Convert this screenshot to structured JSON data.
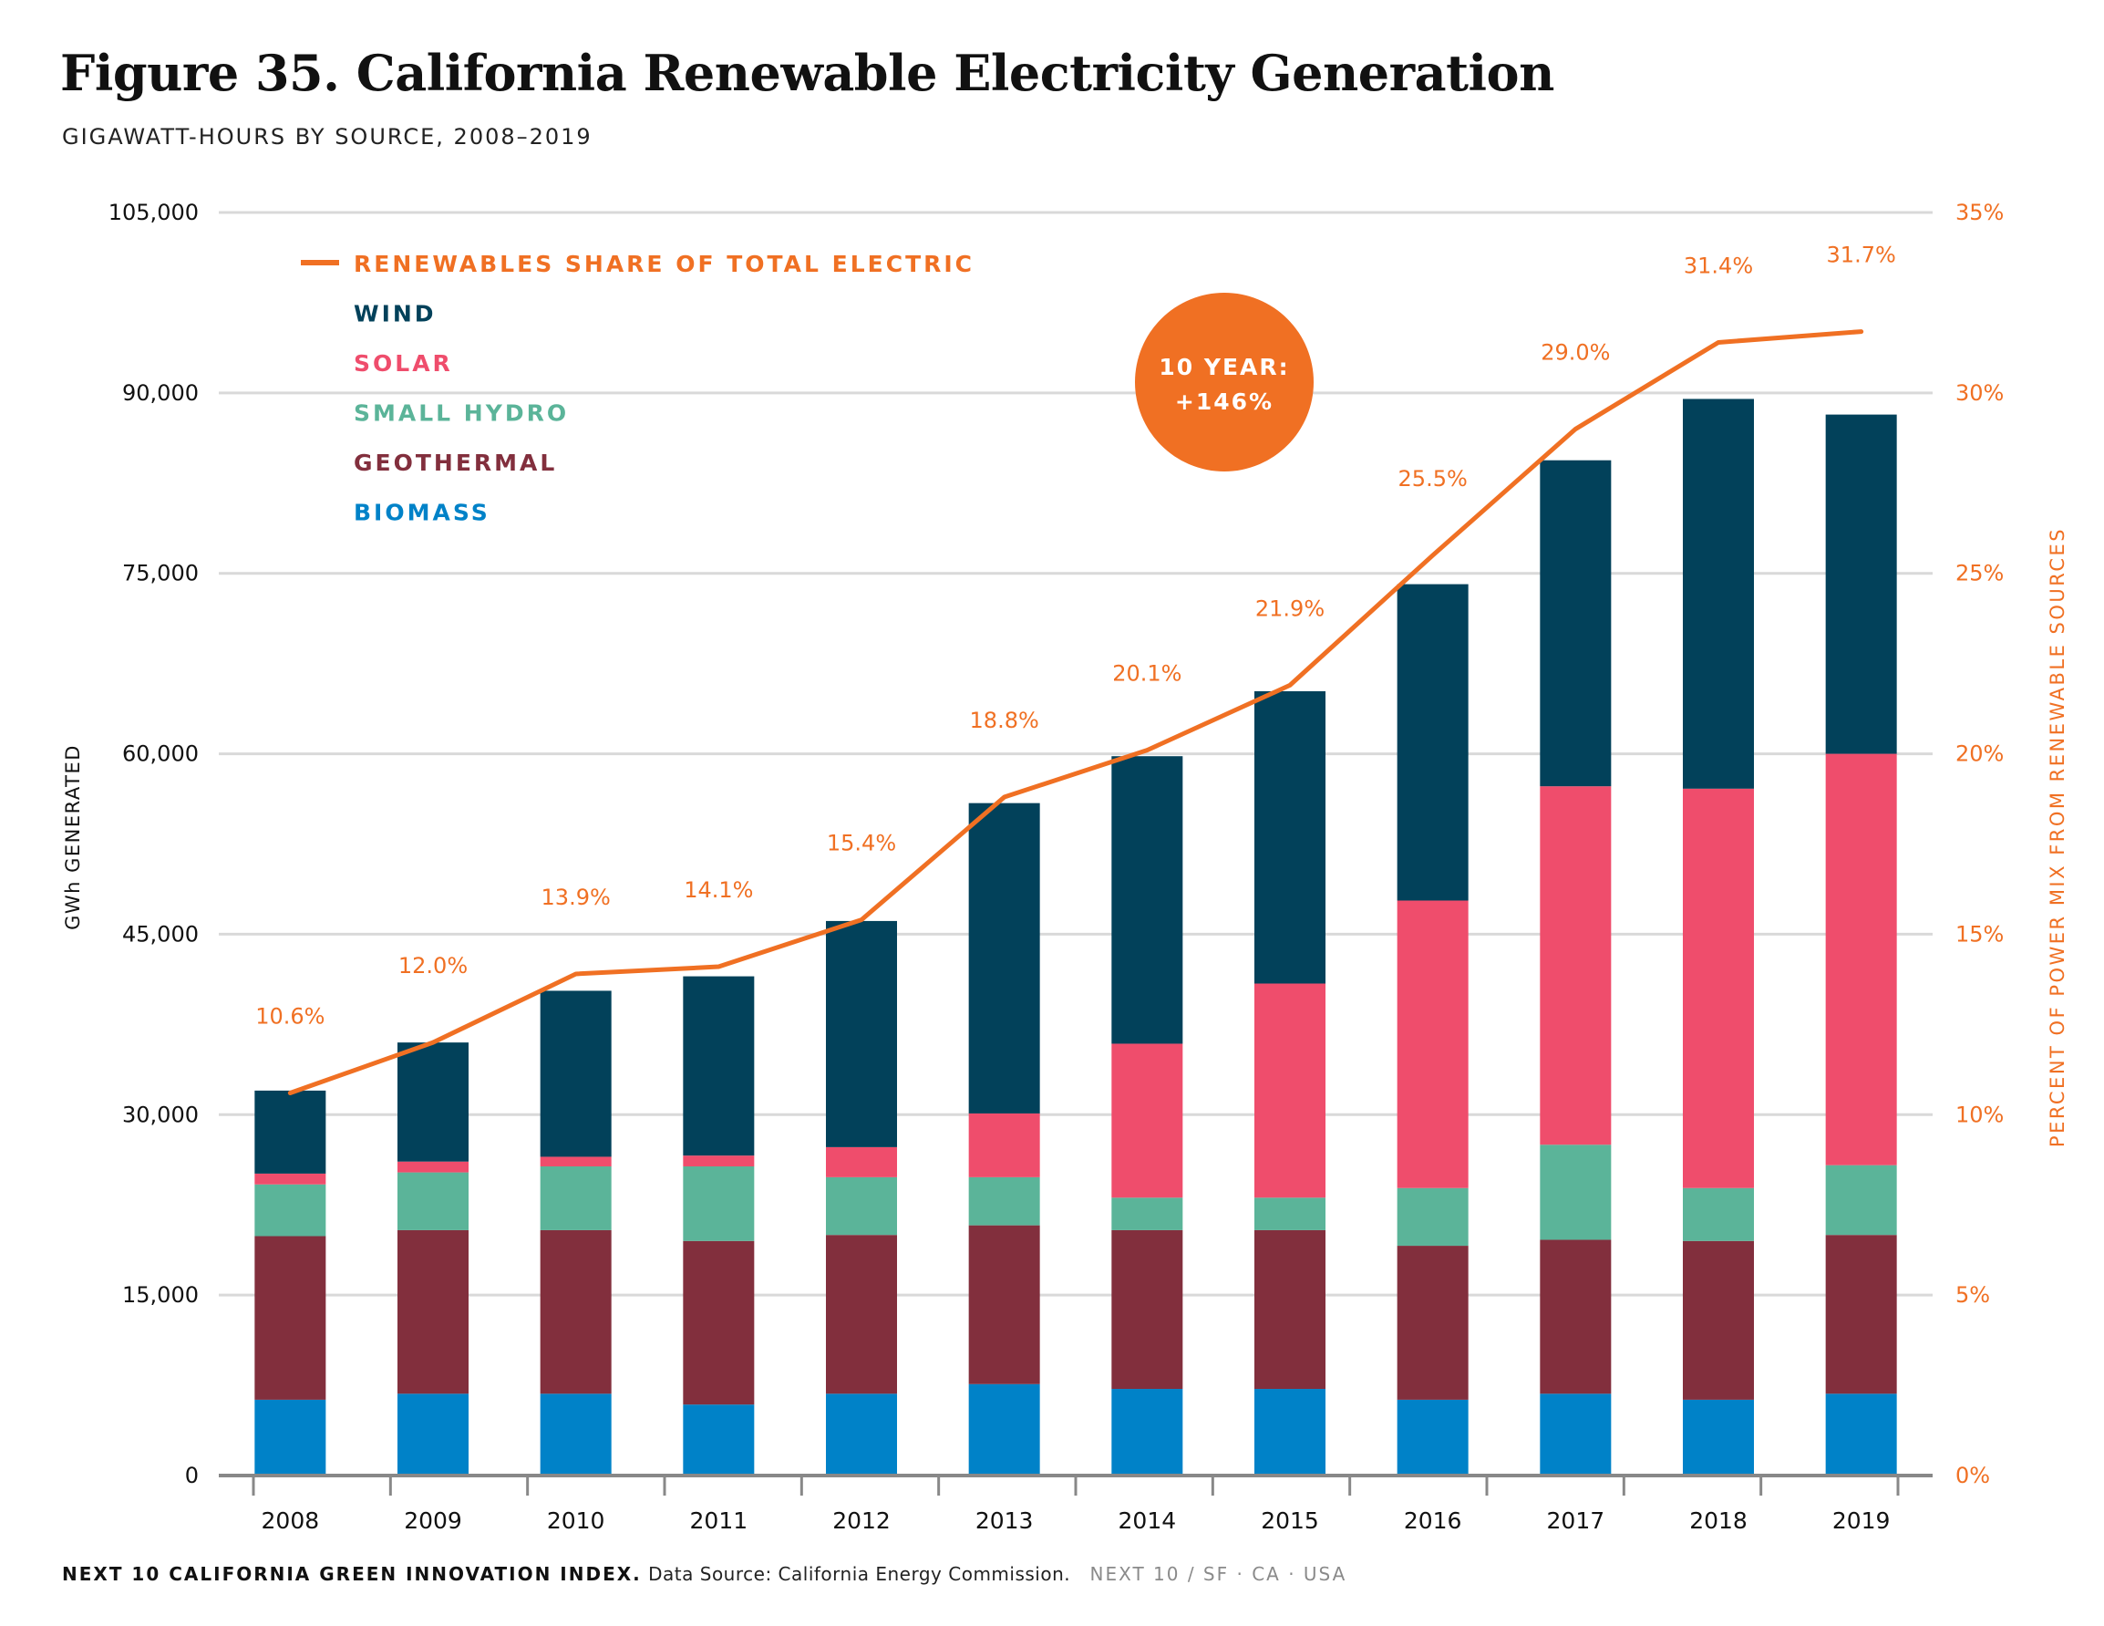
{
  "title": "Figure 35. California Renewable Electricity Generation",
  "subtitle": "GIGAWATT-HOURS BY SOURCE, 2008–2019",
  "footer": {
    "index": "NEXT 10 CALIFORNIA GREEN INNOVATION INDEX.",
    "source": "Data Source: California Energy Commission.",
    "brand": "NEXT 10  /  SF · CA · USA"
  },
  "badge": {
    "line1": "10 YEAR:",
    "line2": "+146%",
    "color": "#f07023"
  },
  "colors": {
    "wind": "#02415a",
    "solar": "#ef4d6c",
    "small_hydro": "#5bb499",
    "geothermal": "#822f3d",
    "biomass": "#0082c8",
    "share_line": "#f07023",
    "grid": "#d9d9d9",
    "axis": "#888888"
  },
  "chart_data": {
    "type": "bar",
    "stacked": true,
    "categories": [
      "2008",
      "2009",
      "2010",
      "2011",
      "2012",
      "2013",
      "2014",
      "2015",
      "2016",
      "2017",
      "2018",
      "2019"
    ],
    "series": [
      {
        "name": "BIOMASS",
        "key": "biomass",
        "values": [
          6300,
          6800,
          6800,
          5900,
          6800,
          7600,
          7200,
          7200,
          6300,
          6800,
          6300,
          6800
        ]
      },
      {
        "name": "GEOTHERMAL",
        "key": "geothermal",
        "values": [
          13600,
          13600,
          13600,
          13600,
          13200,
          13200,
          13200,
          13200,
          12800,
          12800,
          13200,
          13200
        ]
      },
      {
        "name": "SMALL HYDRO",
        "key": "small_hydro",
        "values": [
          4300,
          4800,
          5300,
          6200,
          4800,
          4000,
          2700,
          2700,
          4800,
          7900,
          4400,
          5800
        ]
      },
      {
        "name": "SOLAR",
        "key": "solar",
        "values": [
          900,
          900,
          800,
          900,
          2500,
          5300,
          12800,
          17800,
          23900,
          29800,
          33200,
          34200
        ]
      },
      {
        "name": "WIND",
        "key": "wind",
        "values": [
          6900,
          9900,
          13800,
          14900,
          18800,
          25800,
          23900,
          24300,
          26300,
          27100,
          32400,
          28200
        ]
      }
    ],
    "line": {
      "name": "RENEWABLES SHARE OF TOTAL ELECTRIC",
      "values": [
        10.6,
        12.0,
        13.9,
        14.1,
        15.4,
        18.8,
        20.1,
        21.9,
        25.5,
        29.0,
        31.4,
        31.7
      ],
      "labels": [
        "10.6%",
        "12.0%",
        "13.9%",
        "14.1%",
        "15.4%",
        "18.8%",
        "20.1%",
        "21.9%",
        "25.5%",
        "29.0%",
        "31.4%",
        "31.7%"
      ]
    },
    "ylabel": "GWh GENERATED",
    "y2label": "PERCENT OF POWER MIX FROM RENEWABLE SOURCES",
    "ylim": [
      0,
      105000
    ],
    "y2lim": [
      0,
      35
    ],
    "yticks": [
      "0",
      "15,000",
      "30,000",
      "45,000",
      "60,000",
      "75,000",
      "90,000",
      "105,000"
    ],
    "y2ticks": [
      "0%",
      "5%",
      "10%",
      "15%",
      "20%",
      "25%",
      "30%",
      "35%"
    ],
    "legend": [
      "RENEWABLES SHARE OF TOTAL ELECTRIC",
      "WIND",
      "SOLAR",
      "SMALL HYDRO",
      "GEOTHERMAL",
      "BIOMASS"
    ],
    "legend_position": "top-left",
    "grid": true
  }
}
